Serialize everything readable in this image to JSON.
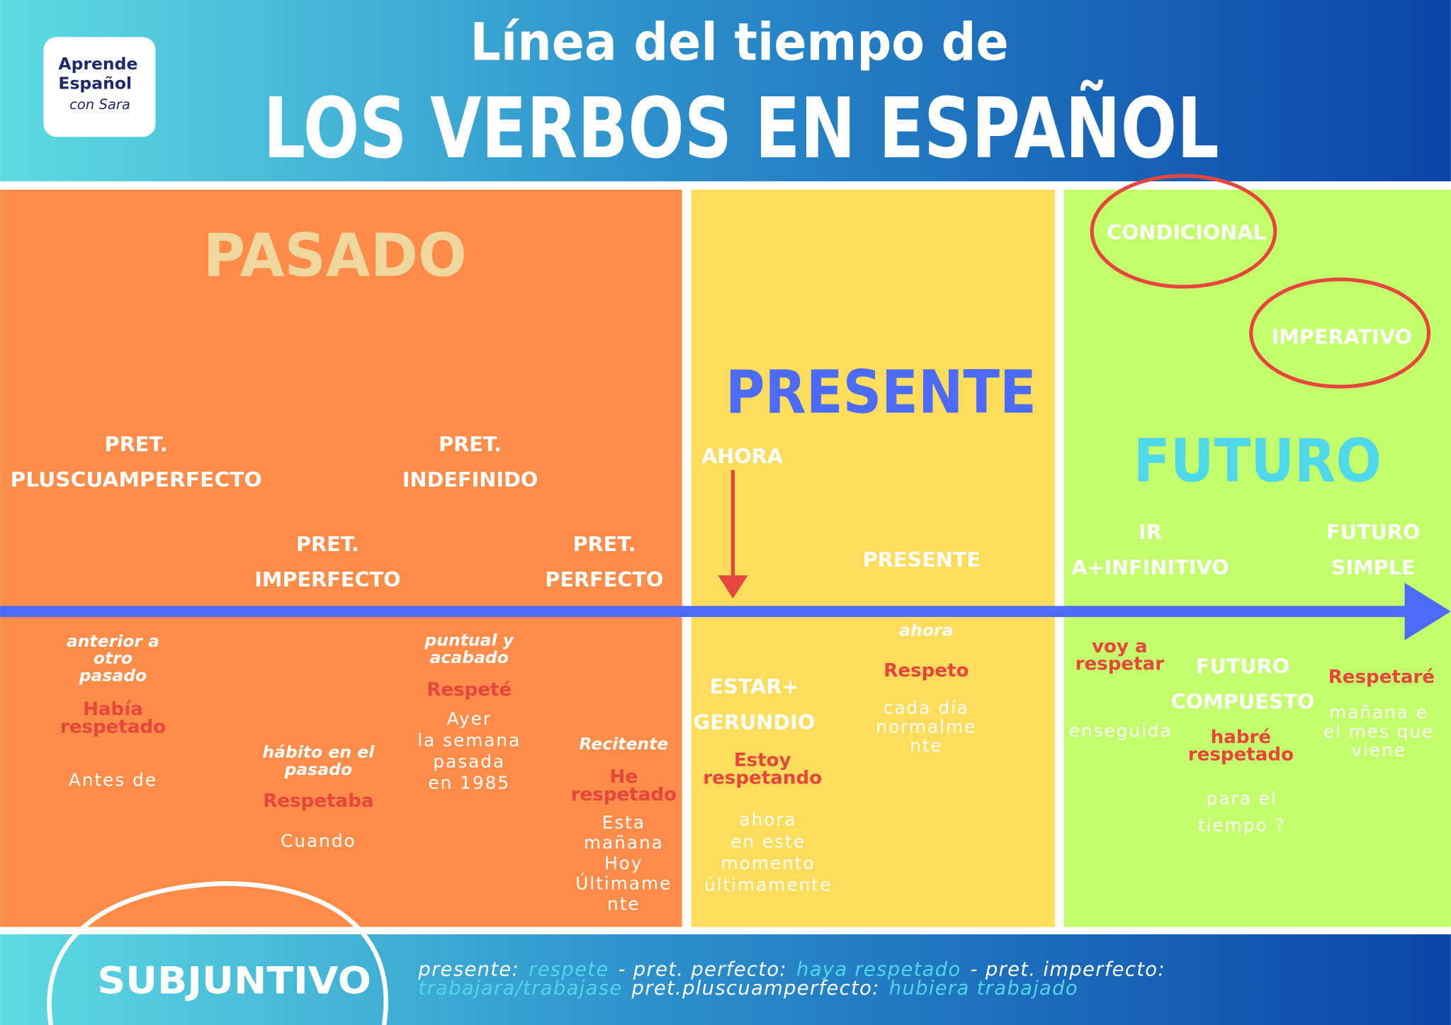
{
  "header": {
    "logo": [
      "Aprende",
      "Español",
      "con Sara"
    ],
    "title": "Línea del tiempo de",
    "subtitle": "LOS VERBOS EN ESPAÑOL"
  },
  "pasado": {
    "title": "PASADO",
    "tenses": [
      {
        "name": [
          "PRET.",
          "PLUSCUAMPERFECTO"
        ],
        "use": [
          "anterior a",
          "otro",
          "pasado"
        ],
        "form": [
          "Había",
          "respetado"
        ],
        "markers": [
          "Antes de"
        ]
      },
      {
        "name": [
          "PRET.",
          "IMPERFECTO"
        ],
        "use": [
          "hábito en el",
          "pasado"
        ],
        "form": [
          "Respetaba"
        ],
        "markers": [
          "Cuando"
        ]
      },
      {
        "name": [
          "PRET.",
          "INDEFINIDO"
        ],
        "use": [
          "puntual y",
          "acabado"
        ],
        "form": [
          "Respeté"
        ],
        "markers": [
          "Ayer",
          "la semana",
          "pasada",
          "en 1985"
        ]
      },
      {
        "name": [
          "PRET.",
          "PERFECTO"
        ],
        "use": [
          "Recitente"
        ],
        "form": [
          "He",
          "respetado"
        ],
        "markers": [
          "Esta",
          "mañana",
          "Hoy",
          "Últimame",
          "nte"
        ]
      }
    ]
  },
  "presente": {
    "title": "PRESENTE",
    "now": "AHORA",
    "tenses": [
      {
        "name": [
          "ESTAR+",
          "GERUNDIO"
        ],
        "form": [
          "Estoy",
          "respetando"
        ],
        "markers": [
          "ahora",
          "en este",
          "momento",
          "últimamente"
        ]
      },
      {
        "name": [
          "PRESENTE"
        ],
        "use": [
          "ahora"
        ],
        "form": [
          "Respeto"
        ],
        "markers": [
          "cada día",
          "normalme",
          "nte"
        ]
      }
    ]
  },
  "futuro": {
    "title": "FUTURO",
    "moods": [
      "CONDICIONAL",
      "IMPERATIVO"
    ],
    "tenses": [
      {
        "name": [
          "IR",
          "A+INFINITIVO"
        ],
        "form": [
          "voy a",
          "respetar"
        ],
        "markers": [
          "enseguida"
        ]
      },
      {
        "name": [
          "FUTURO",
          "COMPUESTO"
        ],
        "form": [
          "habré",
          "respetado"
        ],
        "markers": [
          "para el",
          "tiempo ?"
        ]
      },
      {
        "name": [
          "FUTURO",
          "SIMPLE"
        ],
        "form": [
          "Respetaré"
        ],
        "markers": [
          "mañana e",
          "el mes que",
          "viene"
        ]
      }
    ]
  },
  "footer": {
    "title": "SUBJUNTIVO",
    "line1": [
      "presente:",
      "respete",
      "- pret. perfecto:",
      "haya respetado",
      "- pret. imperfecto:"
    ],
    "line2": [
      "trabajara/trabajase",
      "pret.pluscuamperfecto:",
      "hubiera trabajado"
    ]
  }
}
